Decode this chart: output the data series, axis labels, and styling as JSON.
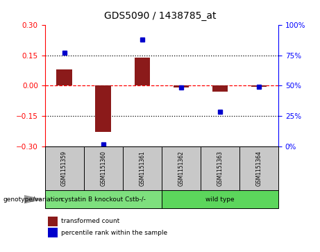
{
  "title": "GDS5090 / 1438785_at",
  "samples": [
    "GSM1151359",
    "GSM1151360",
    "GSM1151361",
    "GSM1151362",
    "GSM1151363",
    "GSM1151364"
  ],
  "bar_values": [
    0.08,
    -0.23,
    0.14,
    -0.01,
    -0.03,
    -0.005
  ],
  "blue_values": [
    0.165,
    -0.29,
    0.23,
    -0.01,
    -0.13,
    -0.005
  ],
  "bar_color": "#8B1A1A",
  "blue_color": "#0000CC",
  "ylim": [
    -0.3,
    0.3
  ],
  "y2lim": [
    0,
    100
  ],
  "yticks": [
    -0.3,
    -0.15,
    0.0,
    0.15,
    0.3
  ],
  "y2ticks": [
    0,
    25,
    50,
    75,
    100
  ],
  "dotted_lines": [
    -0.15,
    0.15
  ],
  "groups": [
    {
      "label": "cystatin B knockout Cstb-/-",
      "indices": [
        0,
        1,
        2
      ],
      "color": "#7EE07E"
    },
    {
      "label": "wild type",
      "indices": [
        3,
        4,
        5
      ],
      "color": "#5CD65C"
    }
  ],
  "genotype_label": "genotype/variation",
  "legend_items": [
    {
      "label": "transformed count",
      "color": "#8B1A1A"
    },
    {
      "label": "percentile rank within the sample",
      "color": "#0000CC"
    }
  ],
  "bar_width": 0.4,
  "cell_bg": "#C8C8C8",
  "plot_bg": "#ffffff"
}
